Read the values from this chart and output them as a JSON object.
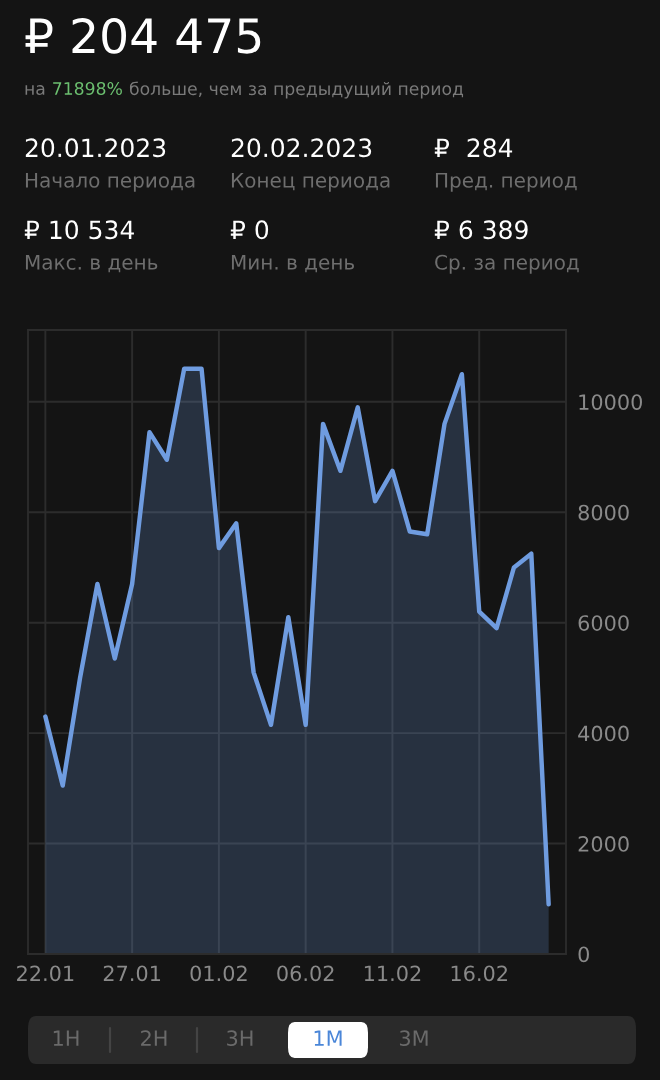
{
  "chart_data": {
    "type": "area",
    "title": "₽ 204 475",
    "x": [
      "2023-01-22",
      "2023-01-23",
      "2023-01-24",
      "2023-01-25",
      "2023-01-26",
      "2023-01-27",
      "2023-01-28",
      "2023-01-29",
      "2023-01-30",
      "2023-01-31",
      "2023-02-01",
      "2023-02-02",
      "2023-02-03",
      "2023-02-04",
      "2023-02-05",
      "2023-02-06",
      "2023-02-07",
      "2023-02-08",
      "2023-02-09",
      "2023-02-10",
      "2023-02-11",
      "2023-02-12",
      "2023-02-13",
      "2023-02-14",
      "2023-02-15",
      "2023-02-16",
      "2023-02-17",
      "2023-02-18",
      "2023-02-19",
      "2023-02-20"
    ],
    "series": [
      {
        "color": "#6f9ce0",
        "values": [
          4300,
          3050,
          5000,
          6700,
          5350,
          6700,
          9450,
          8950,
          10600,
          10600,
          7350,
          7800,
          5100,
          4150,
          6100,
          4150,
          9600,
          8750,
          9900,
          8200,
          8750,
          7650,
          7600,
          9600,
          10500,
          6200,
          5900,
          7000,
          7250,
          900
        ]
      }
    ],
    "xlim": [
      "2023-01-21",
      "2023-02-21"
    ],
    "xticks": [
      {
        "value": "2023-01-22",
        "label": "22.01"
      },
      {
        "value": "2023-01-27",
        "label": "27.01"
      },
      {
        "value": "2023-02-01",
        "label": "01.02"
      },
      {
        "value": "2023-02-06",
        "label": "06.02"
      },
      {
        "value": "2023-02-11",
        "label": "11.02"
      },
      {
        "value": "2023-02-16",
        "label": "16.02"
      }
    ],
    "ylim": [
      0,
      11300
    ],
    "yticks": [
      0,
      2000,
      4000,
      6000,
      8000,
      10000
    ],
    "grid": true,
    "annotations": [
      "на",
      "71898%",
      "больше, чем за предыдущий период",
      "20.01.2023",
      "Начало периода",
      "20.02.2023",
      "Конец периода",
      "₽  284",
      "Пред. период",
      "₽ 10 534",
      "Макс. в день",
      "₽ 0",
      "Мин. в день",
      "₽ 6 389",
      "Ср. за период",
      "1H",
      "2H",
      "3H",
      "1M",
      "3M"
    ]
  }
}
